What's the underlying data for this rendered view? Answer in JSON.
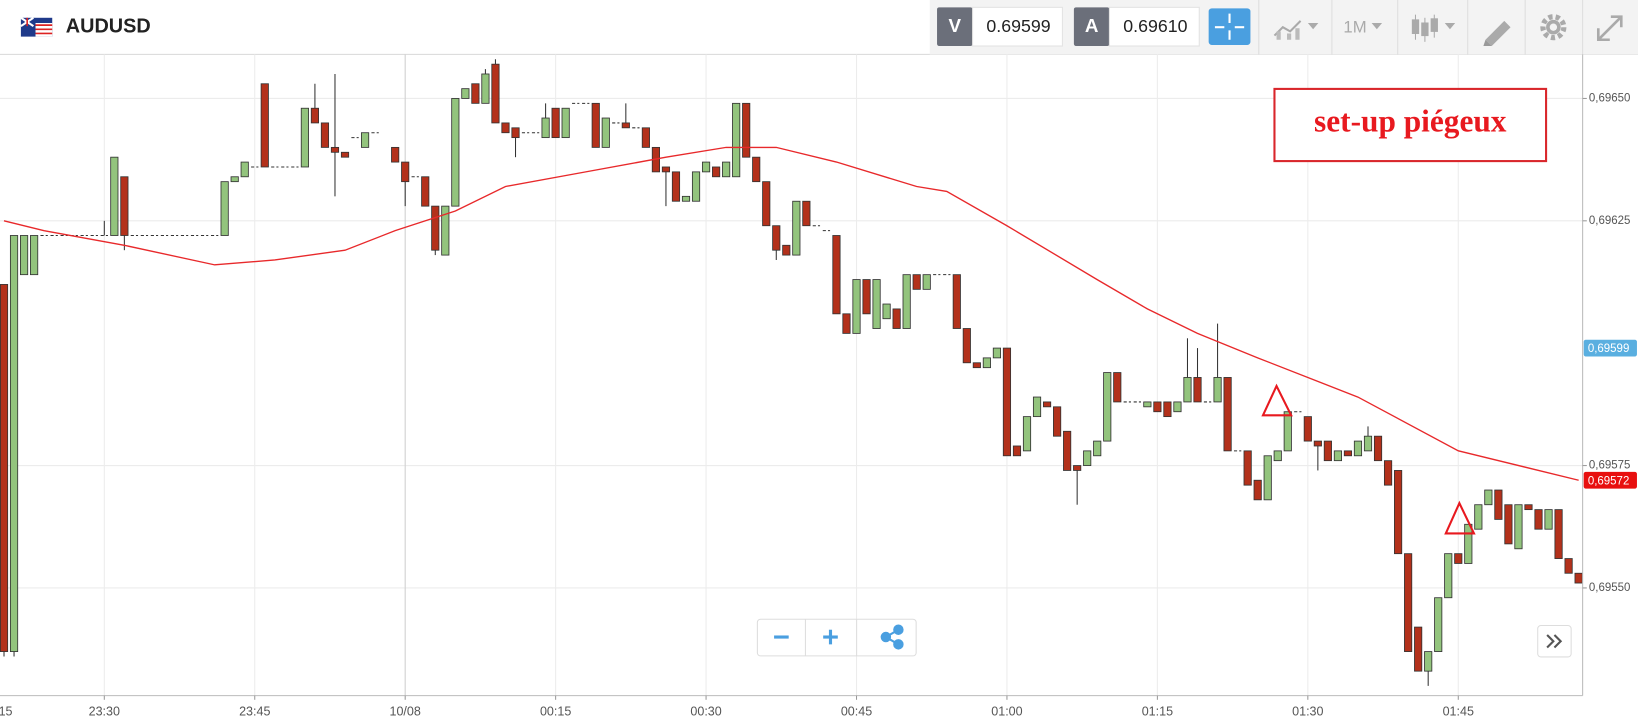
{
  "header": {
    "symbol": "AUDUSD",
    "bid_label": "V",
    "bid": "0.69599",
    "ask_label": "A",
    "ask": "0.69610",
    "timeframe": "1M"
  },
  "chart_data": {
    "type": "candlestick",
    "annotation": "set-up piégeux",
    "up_color": "#93c47d",
    "down_color": "#b3311b",
    "grid": true,
    "xlim": [
      4.6,
      162.4
    ],
    "xticks": [
      {
        "value": 0,
        "label": "15"
      },
      {
        "value": 15,
        "label": "23:30"
      },
      {
        "value": 30,
        "label": "23:45"
      },
      {
        "value": 45,
        "label": "10/08"
      },
      {
        "value": 60,
        "label": "00:15"
      },
      {
        "value": 75,
        "label": "00:30"
      },
      {
        "value": 90,
        "label": "00:45"
      },
      {
        "value": 105,
        "label": "01:00"
      },
      {
        "value": 120,
        "label": "01:15"
      },
      {
        "value": 135,
        "label": "01:30"
      },
      {
        "value": 150,
        "label": "01:45"
      }
    ],
    "ylim": [
      0.69528,
      0.69659
    ],
    "yticks": [
      {
        "value": 0.6965,
        "label": "0,69650"
      },
      {
        "value": 0.69625,
        "label": "0,69625"
      },
      {
        "value": 0.69575,
        "label": "0,69575"
      },
      {
        "value": 0.6955,
        "label": "0,69550"
      }
    ],
    "price_markers": [
      {
        "value": 0.69599,
        "label": "0,69599",
        "color": "#5aafe0"
      },
      {
        "value": 0.69572,
        "label": "0,69572",
        "color": "#e8100f"
      }
    ],
    "x": [
      5,
      6,
      7,
      8,
      9,
      10,
      11,
      12,
      13,
      14,
      15,
      16,
      17,
      18,
      19,
      20,
      21,
      22,
      23,
      24,
      25,
      26,
      27,
      28,
      29,
      30,
      31,
      32,
      33,
      34,
      35,
      36,
      37,
      38,
      39,
      40,
      41,
      42,
      44,
      45,
      46,
      47,
      48,
      49,
      50,
      51,
      52,
      53,
      54,
      55,
      56,
      57,
      58,
      59,
      60,
      61,
      62,
      63,
      64,
      65,
      66,
      67,
      68,
      69,
      70,
      71,
      72,
      73,
      74,
      75,
      76,
      77,
      78,
      79,
      80,
      81,
      82,
      83,
      84,
      85,
      86,
      87,
      88,
      89,
      90,
      91,
      92,
      93,
      94,
      95,
      96,
      97,
      98,
      99,
      100,
      101,
      102,
      103,
      104,
      105,
      106,
      107,
      108,
      109,
      110,
      111,
      112,
      113,
      114,
      115,
      116,
      117,
      118,
      119,
      120,
      121,
      122,
      123,
      124,
      125,
      126,
      127,
      128,
      129,
      130,
      131,
      132,
      133,
      134,
      135,
      136,
      137,
      138,
      139,
      140,
      141,
      142,
      143,
      144,
      145,
      146,
      147,
      148,
      149,
      150,
      151,
      152,
      153,
      154,
      155,
      156,
      157,
      158,
      159,
      160,
      161,
      162
    ],
    "open": [
      0.69612,
      0.69537,
      0.69614,
      0.69614,
      0.69622,
      0.69622,
      0.69622,
      0.69622,
      0.69622,
      0.69622,
      0.69622,
      0.69622,
      0.69634,
      0.69622,
      0.69622,
      0.69622,
      0.69622,
      0.69622,
      0.69622,
      0.69622,
      0.69622,
      0.69622,
      0.69622,
      0.69633,
      0.69634,
      0.69636,
      0.69653,
      0.69636,
      0.69636,
      0.69636,
      0.69636,
      0.69648,
      0.69645,
      0.6964,
      0.69639,
      0.69642,
      0.6964,
      0.69643,
      0.6964,
      0.69637,
      0.69634,
      0.69634,
      0.69628,
      0.69618,
      0.69628,
      0.6965,
      0.69653,
      0.69649,
      0.69657,
      0.69645,
      0.69644,
      0.69643,
      0.69643,
      0.69642,
      0.69648,
      0.69642,
      0.69649,
      0.69649,
      0.69649,
      0.6964,
      0.69645,
      0.69645,
      0.69644,
      0.69644,
      0.6964,
      0.69636,
      0.69635,
      0.69629,
      0.69629,
      0.69635,
      0.69636,
      0.69634,
      0.69634,
      0.69649,
      0.69638,
      0.69633,
      0.69624,
      0.6962,
      0.69618,
      0.69629,
      0.69624,
      0.69623,
      0.69622,
      0.69606,
      0.69602,
      0.69613,
      0.69603,
      0.69605,
      0.69607,
      0.69603,
      0.69614,
      0.69611,
      0.69614,
      0.69614,
      0.69614,
      0.69603,
      0.69596,
      0.69595,
      0.69597,
      0.69599,
      0.69579,
      0.69578,
      0.69585,
      0.69588,
      0.69587,
      0.69582,
      0.69575,
      0.69575,
      0.69577,
      0.6958,
      0.69594,
      0.69588,
      0.69588,
      0.69587,
      0.69588,
      0.69588,
      0.69586,
      0.69588,
      0.69593,
      0.69588,
      0.69588,
      0.69593,
      0.69578,
      0.69578,
      0.69572,
      0.69568,
      0.69576,
      0.69578,
      0.69586,
      0.69585,
      0.6958,
      0.6958,
      0.69576,
      0.69578,
      0.69577,
      0.69578,
      0.69581,
      0.69576,
      0.69574,
      0.69557,
      0.69542,
      0.69533,
      0.69537,
      0.69548,
      0.69557,
      0.69555,
      0.69562,
      0.69567,
      0.6957,
      0.69567,
      0.69558,
      0.69567,
      0.69566,
      0.69562,
      0.69566,
      0.69556,
      0.69553
    ],
    "high": [
      0.69612,
      0.69622,
      0.69622,
      0.69622,
      0.69622,
      0.69622,
      0.69622,
      0.69622,
      0.69622,
      0.69622,
      0.69625,
      0.69638,
      0.69634,
      0.69622,
      0.69622,
      0.69622,
      0.69622,
      0.69622,
      0.69622,
      0.69622,
      0.69622,
      0.69622,
      0.69633,
      0.69634,
      0.69637,
      0.69636,
      0.69653,
      0.69636,
      0.69636,
      0.69636,
      0.69648,
      0.69653,
      0.69645,
      0.69655,
      0.69639,
      0.69642,
      0.69643,
      0.69643,
      0.6964,
      0.69637,
      0.69634,
      0.69634,
      0.69628,
      0.69628,
      0.6965,
      0.69652,
      0.69653,
      0.69656,
      0.69658,
      0.69645,
      0.69644,
      0.69643,
      0.69643,
      0.69649,
      0.69648,
      0.69648,
      0.69649,
      0.69649,
      0.69649,
      0.69646,
      0.69645,
      0.69649,
      0.69644,
      0.69644,
      0.6964,
      0.69636,
      0.69635,
      0.6963,
      0.69635,
      0.69637,
      0.69636,
      0.69637,
      0.69649,
      0.69649,
      0.69638,
      0.69633,
      0.69624,
      0.6962,
      0.69629,
      0.69629,
      0.69624,
      0.69623,
      0.69622,
      0.69606,
      0.69613,
      0.69613,
      0.69613,
      0.69608,
      0.69607,
      0.69614,
      0.69614,
      0.69614,
      0.69614,
      0.69614,
      0.69614,
      0.69603,
      0.69596,
      0.69597,
      0.69599,
      0.69599,
      0.69579,
      0.69585,
      0.69589,
      0.69588,
      0.69587,
      0.69582,
      0.69575,
      0.69578,
      0.6958,
      0.69594,
      0.69594,
      0.69588,
      0.69588,
      0.69588,
      0.69588,
      0.69588,
      0.69588,
      0.69601,
      0.69599,
      0.69588,
      0.69604,
      0.69593,
      0.69578,
      0.69578,
      0.69572,
      0.69577,
      0.69578,
      0.69586,
      0.69586,
      0.69585,
      0.6958,
      0.6958,
      0.69578,
      0.69578,
      0.6958,
      0.69583,
      0.69581,
      0.69576,
      0.69574,
      0.69557,
      0.69542,
      0.69537,
      0.69548,
      0.69557,
      0.69557,
      0.69563,
      0.69567,
      0.6957,
      0.6957,
      0.69567,
      0.69567,
      0.69567,
      0.69566,
      0.69566,
      0.69566,
      0.69556,
      0.69553
    ],
    "low": [
      0.69536,
      0.69536,
      0.69614,
      0.69614,
      0.69622,
      0.69622,
      0.69622,
      0.69622,
      0.69622,
      0.69622,
      0.69622,
      0.69622,
      0.69619,
      0.69622,
      0.69622,
      0.69622,
      0.69622,
      0.69622,
      0.69622,
      0.69622,
      0.69622,
      0.69622,
      0.69622,
      0.69633,
      0.69634,
      0.69636,
      0.69636,
      0.69636,
      0.69636,
      0.69636,
      0.69636,
      0.69645,
      0.6964,
      0.6963,
      0.69638,
      0.69642,
      0.6964,
      0.69643,
      0.69637,
      0.69628,
      0.69634,
      0.69628,
      0.69618,
      0.69618,
      0.69628,
      0.6965,
      0.69649,
      0.69649,
      0.69645,
      0.69643,
      0.69638,
      0.69643,
      0.69643,
      0.69642,
      0.69642,
      0.69642,
      0.69649,
      0.69649,
      0.6964,
      0.6964,
      0.69645,
      0.69644,
      0.69644,
      0.6964,
      0.69635,
      0.69628,
      0.69629,
      0.69629,
      0.69629,
      0.69635,
      0.69634,
      0.69634,
      0.69634,
      0.69638,
      0.69633,
      0.69624,
      0.69617,
      0.69618,
      0.69618,
      0.69624,
      0.69624,
      0.69623,
      0.69606,
      0.69602,
      0.69602,
      0.69606,
      0.69603,
      0.69605,
      0.69603,
      0.69603,
      0.69611,
      0.69611,
      0.69614,
      0.69614,
      0.69603,
      0.69596,
      0.69595,
      0.69595,
      0.69597,
      0.69577,
      0.69577,
      0.69578,
      0.69585,
      0.69587,
      0.69581,
      0.69574,
      0.69567,
      0.69575,
      0.69577,
      0.6958,
      0.69588,
      0.69588,
      0.69588,
      0.69587,
      0.69586,
      0.69585,
      0.69586,
      0.69588,
      0.69588,
      0.69588,
      0.69588,
      0.69578,
      0.69578,
      0.69571,
      0.69568,
      0.69568,
      0.69576,
      0.69578,
      0.69586,
      0.6958,
      0.69574,
      0.69576,
      0.69576,
      0.69577,
      0.69577,
      0.69578,
      0.69576,
      0.69571,
      0.69557,
      0.69537,
      0.69533,
      0.6953,
      0.69537,
      0.69548,
      0.69555,
      0.69555,
      0.69562,
      0.69567,
      0.69564,
      0.69559,
      0.69558,
      0.69566,
      0.69562,
      0.69562,
      0.69556,
      0.69553,
      0.69551
    ],
    "close": [
      0.69537,
      0.69622,
      0.69622,
      0.69622,
      0.69622,
      0.69622,
      0.69622,
      0.69622,
      0.69622,
      0.69622,
      0.69622,
      0.69638,
      0.69622,
      0.69622,
      0.69622,
      0.69622,
      0.69622,
      0.69622,
      0.69622,
      0.69622,
      0.69622,
      0.69622,
      0.69633,
      0.69634,
      0.69637,
      0.69636,
      0.69636,
      0.69636,
      0.69636,
      0.69636,
      0.69648,
      0.69645,
      0.6964,
      0.69639,
      0.69638,
      0.69642,
      0.69643,
      0.69643,
      0.69637,
      0.69633,
      0.69634,
      0.69628,
      0.69619,
      0.69628,
      0.6965,
      0.69652,
      0.69649,
      0.69655,
      0.69645,
      0.69643,
      0.69642,
      0.69643,
      0.69643,
      0.69646,
      0.69642,
      0.69648,
      0.69649,
      0.69649,
      0.6964,
      0.69646,
      0.69645,
      0.69644,
      0.69644,
      0.6964,
      0.69635,
      0.69635,
      0.69629,
      0.6963,
      0.69635,
      0.69637,
      0.69634,
      0.69637,
      0.69649,
      0.69638,
      0.69633,
      0.69624,
      0.69619,
      0.69618,
      0.69629,
      0.69624,
      0.69624,
      0.69623,
      0.69606,
      0.69602,
      0.69613,
      0.69606,
      0.69613,
      0.69608,
      0.69603,
      0.69614,
      0.69611,
      0.69614,
      0.69614,
      0.69614,
      0.69603,
      0.69596,
      0.69595,
      0.69597,
      0.69599,
      0.69577,
      0.69577,
      0.69585,
      0.69589,
      0.69587,
      0.69581,
      0.69574,
      0.69574,
      0.69578,
      0.6958,
      0.69594,
      0.69588,
      0.69588,
      0.69588,
      0.69588,
      0.69586,
      0.69585,
      0.69588,
      0.69593,
      0.69588,
      0.69588,
      0.69593,
      0.69578,
      0.69578,
      0.69571,
      0.69568,
      0.69577,
      0.69578,
      0.69586,
      0.69586,
      0.6958,
      0.69579,
      0.69576,
      0.69578,
      0.69577,
      0.6958,
      0.69581,
      0.69576,
      0.69571,
      0.69557,
      0.69537,
      0.69533,
      0.69537,
      0.69548,
      0.69557,
      0.69555,
      0.69563,
      0.69567,
      0.6957,
      0.69564,
      0.69559,
      0.69567,
      0.69566,
      0.69562,
      0.69566,
      0.69556,
      0.69553,
      0.69551
    ],
    "lines": [
      {
        "color": "#e8292b",
        "x": [
          5,
          9,
          17,
          26,
          32,
          39,
          44,
          50,
          55,
          63,
          71,
          77,
          82,
          88,
          96,
          99,
          105,
          114,
          119,
          124,
          130,
          140,
          150,
          162
        ],
        "values": [
          0.69625,
          0.69623,
          0.6962,
          0.69616,
          0.69617,
          0.69619,
          0.69623,
          0.69627,
          0.69632,
          0.69635,
          0.69638,
          0.6964,
          0.6964,
          0.69637,
          0.69632,
          0.69631,
          0.69624,
          0.69613,
          0.69607,
          0.69602,
          0.69597,
          0.69589,
          0.69578,
          0.69572
        ]
      }
    ]
  }
}
